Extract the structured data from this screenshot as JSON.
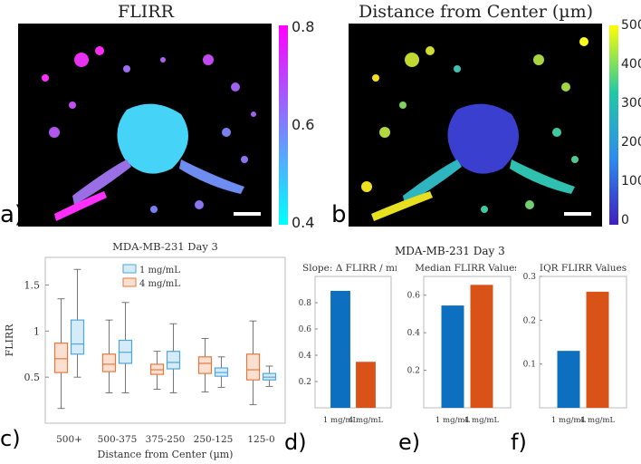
{
  "panel_a": {
    "title": "FLIRR",
    "letter": "a)",
    "colorbar": {
      "min": 0.4,
      "max": 0.8,
      "ticks": [
        "0.8",
        "0.6",
        "0.4"
      ],
      "colors": [
        "#ff00ff",
        "#00ffff"
      ]
    }
  },
  "panel_b": {
    "title": "Distance from Center (µm)",
    "letter": "b)",
    "colorbar": {
      "min": 0,
      "max": 500,
      "ticks": [
        "500",
        "400",
        "300",
        "200",
        "100",
        "0"
      ],
      "colors": [
        "#ffff00",
        "#22c9a2",
        "#2d8cf0",
        "#3e1fbf"
      ]
    }
  },
  "chart_data": [
    {
      "type": "box",
      "letter": "c)",
      "title": "MDA-MB-231 Day 3",
      "xlabel": "Distance from Center (µm)",
      "ylabel": "FLIRR",
      "ylim": [
        0,
        1.8
      ],
      "yticks": [
        "0.5",
        "1",
        "1.5"
      ],
      "categories": [
        "500+",
        "500-375",
        "375-250",
        "250-125",
        "125-0"
      ],
      "legend": [
        "1 mg/mL",
        "4 mg/mL"
      ],
      "series": [
        {
          "name": "4 mg/mL",
          "color": "#e4793f",
          "boxes": [
            {
              "min": 0.16,
              "q1": 0.55,
              "median": 0.7,
              "q3": 0.87,
              "max": 1.35
            },
            {
              "min": 0.33,
              "q1": 0.56,
              "median": 0.64,
              "q3": 0.75,
              "max": 1.12
            },
            {
              "min": 0.37,
              "q1": 0.53,
              "median": 0.58,
              "q3": 0.64,
              "max": 0.78
            },
            {
              "min": 0.34,
              "q1": 0.54,
              "median": 0.65,
              "q3": 0.72,
              "max": 0.92
            },
            {
              "min": 0.2,
              "q1": 0.47,
              "median": 0.58,
              "q3": 0.75,
              "max": 1.11
            }
          ]
        },
        {
          "name": "1 mg/mL",
          "color": "#4ea6dc",
          "boxes": [
            {
              "min": 0.5,
              "q1": 0.75,
              "median": 0.86,
              "q3": 1.12,
              "max": 1.67
            },
            {
              "min": 0.33,
              "q1": 0.65,
              "median": 0.77,
              "q3": 0.9,
              "max": 1.31
            },
            {
              "min": 0.33,
              "q1": 0.59,
              "median": 0.66,
              "q3": 0.78,
              "max": 1.08
            },
            {
              "min": 0.39,
              "q1": 0.51,
              "median": 0.55,
              "q3": 0.6,
              "max": 0.72
            },
            {
              "min": 0.4,
              "q1": 0.47,
              "median": 0.5,
              "q3": 0.54,
              "max": 0.62
            }
          ]
        }
      ]
    },
    {
      "type": "bar",
      "letter": "d)",
      "title": "Slope: Δ FLIRR / mm",
      "categories": [
        "1 mg/mL",
        "4 mg/mL"
      ],
      "values": [
        0.89,
        0.35
      ],
      "colors": [
        "#0c6fbf",
        "#d95319"
      ],
      "ylim": [
        0,
        1
      ],
      "yticks": [
        "0.2",
        "0.4",
        "0.6",
        "0.8"
      ]
    },
    {
      "type": "bar",
      "letter": "e)",
      "title": "Median FLIRR Values",
      "categories": [
        "1 mg/mL",
        "4 mg/mL"
      ],
      "values": [
        0.545,
        0.655
      ],
      "colors": [
        "#0c6fbf",
        "#d95319"
      ],
      "ylim": [
        0,
        0.7
      ],
      "yticks": [
        "0.2",
        "0.4",
        "0.6"
      ]
    },
    {
      "type": "bar",
      "letter": "f)",
      "title": "IQR FLIRR Values",
      "categories": [
        "1 mg/mL",
        "4 mg/mL"
      ],
      "values": [
        0.13,
        0.265
      ],
      "colors": [
        "#0c6fbf",
        "#d95319"
      ],
      "ylim": [
        0,
        0.3
      ],
      "yticks": [
        "0.1",
        "0.2",
        "0.3"
      ]
    }
  ],
  "bar_group_title": "MDA-MB-231 Day 3"
}
